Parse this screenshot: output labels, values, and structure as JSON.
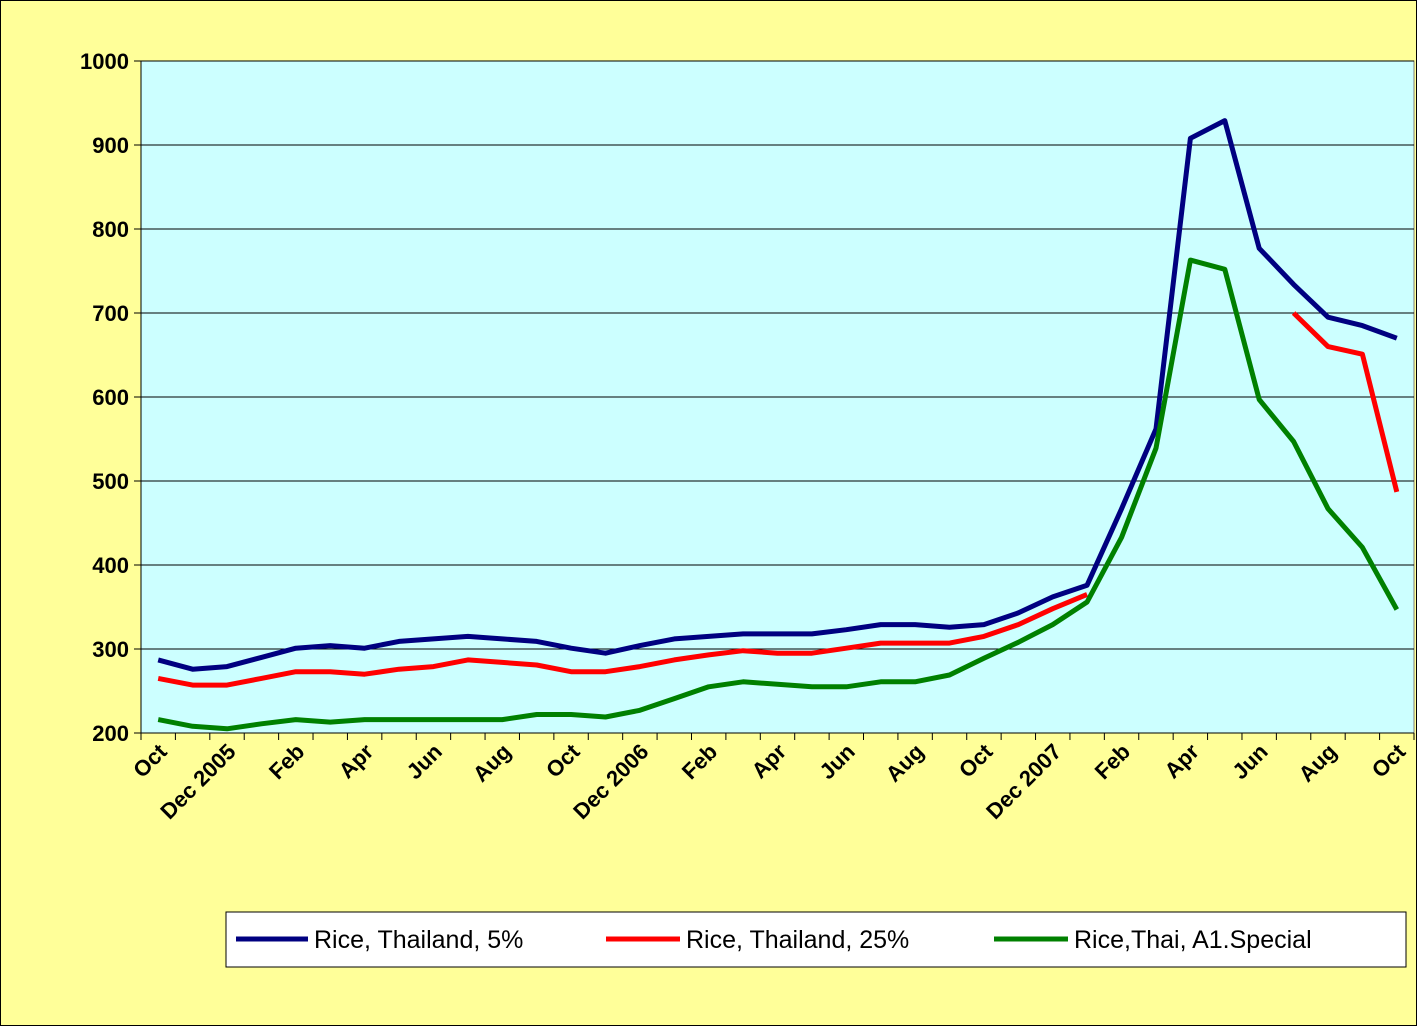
{
  "chart_data": {
    "type": "line",
    "title": "",
    "xlabel": "",
    "ylabel": "",
    "ylim": [
      200,
      1000
    ],
    "yticks": [
      200,
      300,
      400,
      500,
      600,
      700,
      800,
      900,
      1000
    ],
    "grid": "horizontal",
    "legend_position": "bottom",
    "colors": {
      "chart_background": "#ffff99",
      "plot_background": "#ccffff",
      "gridline": "#000000"
    },
    "x_tick_labels": [
      {
        "index": 0,
        "label": "Oct"
      },
      {
        "index": 2,
        "label": "Dec 2005"
      },
      {
        "index": 4,
        "label": "Feb"
      },
      {
        "index": 6,
        "label": "Apr"
      },
      {
        "index": 8,
        "label": "Jun"
      },
      {
        "index": 10,
        "label": "Aug"
      },
      {
        "index": 12,
        "label": "Oct"
      },
      {
        "index": 14,
        "label": "Dec 2006"
      },
      {
        "index": 16,
        "label": "Feb"
      },
      {
        "index": 18,
        "label": "Apr"
      },
      {
        "index": 20,
        "label": "Jun"
      },
      {
        "index": 22,
        "label": "Aug"
      },
      {
        "index": 24,
        "label": "Oct"
      },
      {
        "index": 26,
        "label": "Dec 2007"
      },
      {
        "index": 28,
        "label": "Feb"
      },
      {
        "index": 30,
        "label": "Apr"
      },
      {
        "index": 32,
        "label": "Jun"
      },
      {
        "index": 34,
        "label": "Aug"
      },
      {
        "index": 36,
        "label": "Oct"
      }
    ],
    "series": [
      {
        "name": "Rice, Thailand, 5%",
        "color": "#000080",
        "values": [
          287,
          276,
          279,
          290,
          301,
          304,
          301,
          309,
          312,
          315,
          312,
          309,
          301,
          295,
          304,
          312,
          315,
          318,
          318,
          318,
          323,
          329,
          329,
          326,
          329,
          343,
          362,
          376,
          467,
          562,
          908,
          929,
          777,
          734,
          695,
          685,
          670
        ]
      },
      {
        "name": "Rice, Thailand, 25%",
        "color": "#ff0000",
        "values": [
          265,
          257,
          257,
          265,
          273,
          273,
          270,
          276,
          279,
          287,
          284,
          281,
          273,
          273,
          279,
          287,
          293,
          298,
          295,
          295,
          301,
          307,
          307,
          307,
          315,
          329,
          348,
          365,
          null,
          null,
          null,
          null,
          null,
          700,
          660,
          651,
          487
        ]
      },
      {
        "name": "Rice,Thai, A1.Special",
        "color": "#008000",
        "values": [
          216,
          208,
          205,
          211,
          216,
          213,
          216,
          216,
          216,
          216,
          216,
          222,
          222,
          219,
          227,
          241,
          255,
          261,
          258,
          255,
          255,
          261,
          261,
          269,
          289,
          308,
          329,
          356,
          433,
          539,
          763,
          752,
          597,
          547,
          467,
          421,
          347
        ]
      }
    ]
  }
}
